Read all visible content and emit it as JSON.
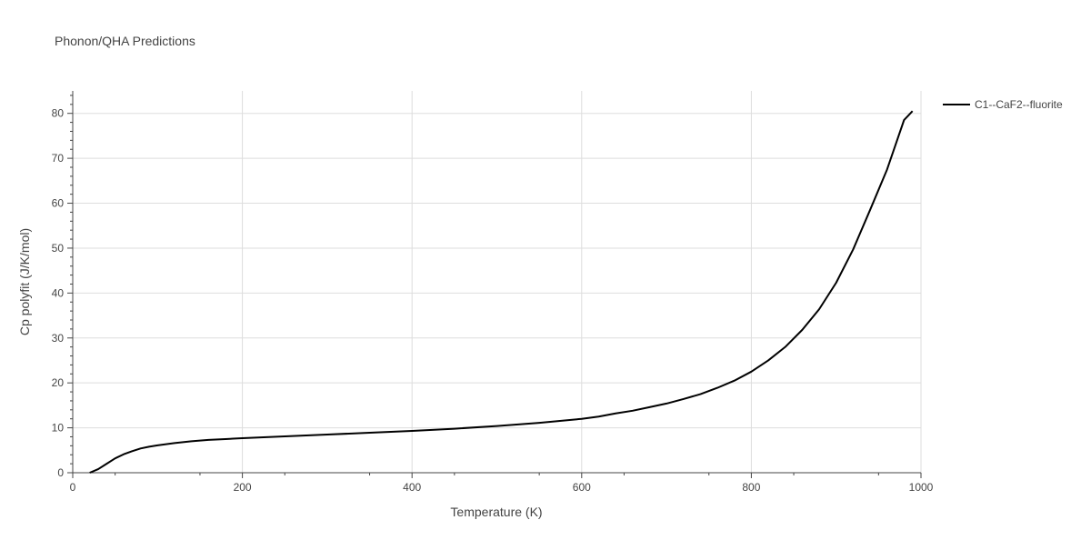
{
  "chart_data": {
    "type": "line",
    "title": "Phonon/QHA Predictions",
    "xlabel": "Temperature (K)",
    "ylabel": "Cp polyfit (J/K/mol)",
    "xlim": [
      0,
      1000
    ],
    "ylim": [
      0,
      85
    ],
    "x_ticks": [
      0,
      200,
      400,
      600,
      800,
      1000
    ],
    "y_ticks": [
      0,
      10,
      20,
      30,
      40,
      50,
      60,
      70,
      80
    ],
    "grid": true,
    "legend_position": "top-right",
    "series": [
      {
        "name": "C1--CaF2--fluorite",
        "color": "#000000",
        "x": [
          20,
          30,
          40,
          50,
          60,
          70,
          80,
          90,
          100,
          120,
          140,
          160,
          180,
          200,
          250,
          300,
          350,
          400,
          450,
          500,
          550,
          600,
          620,
          640,
          660,
          680,
          700,
          720,
          740,
          760,
          780,
          800,
          820,
          840,
          860,
          880,
          900,
          920,
          940,
          960,
          970,
          980,
          990
        ],
        "y": [
          0,
          0.8,
          2.0,
          3.2,
          4.1,
          4.8,
          5.4,
          5.8,
          6.1,
          6.6,
          7.0,
          7.3,
          7.5,
          7.7,
          8.1,
          8.5,
          8.9,
          9.3,
          9.8,
          10.4,
          11.1,
          12.0,
          12.5,
          13.2,
          13.8,
          14.6,
          15.4,
          16.4,
          17.5,
          18.9,
          20.5,
          22.5,
          25.0,
          28.0,
          31.8,
          36.4,
          42.3,
          49.7,
          58.5,
          67.5,
          73.0,
          78.5,
          80.5
        ]
      }
    ]
  }
}
